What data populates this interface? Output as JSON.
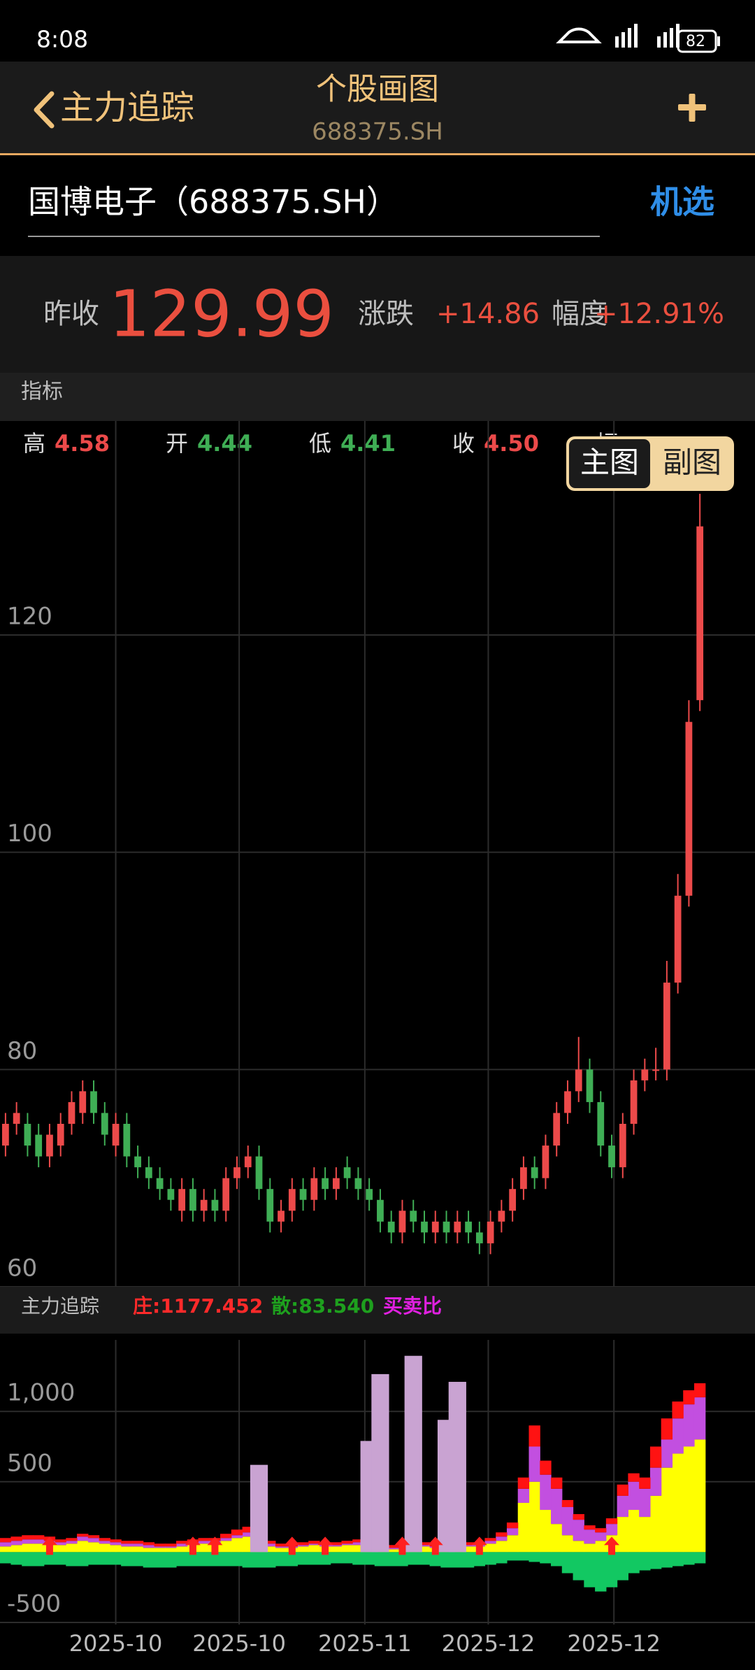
{
  "status": {
    "time": "8:08",
    "battery": "82"
  },
  "header": {
    "back": "主力追踪",
    "title": "个股画图",
    "subtitle": "688375.SH"
  },
  "search": {
    "text": "国博电子（688375.SH）",
    "button": "机选"
  },
  "quote": {
    "prev_label": "昨收",
    "price": "129.99",
    "change_label": "涨跌",
    "change": "+14.86",
    "pct_label": "幅度",
    "pct": "+12.91%"
  },
  "section": {
    "title": "指标"
  },
  "info": {
    "high_label": "高",
    "high": "4.58",
    "open_label": "开",
    "open": "4.44",
    "low_label": "低",
    "low": "4.41",
    "close_label": "收",
    "close": "4.50",
    "range_label": "幅"
  },
  "toggle": {
    "main": "主图",
    "sub": "副图"
  },
  "indicator_header": {
    "title": "主力追踪",
    "items": [
      {
        "text": "庄:1177.452",
        "color": "#ff2a2a"
      },
      {
        "text": "散:83.540",
        "color": "#1ea01e"
      },
      {
        "text": "买卖比",
        "color": "#e020e0"
      }
    ]
  },
  "chart_data": [
    {
      "type": "candlestick",
      "up_color": "#ec4a4a",
      "down_color": "#3fae55",
      "xlim": [
        -0.5,
        68
      ],
      "ylim": [
        60,
        139.7
      ],
      "yticks": [
        60,
        80,
        100,
        120
      ],
      "grid": true,
      "open": [
        73,
        75,
        75,
        74,
        72,
        73,
        75,
        76,
        78,
        76,
        73,
        75,
        72,
        71,
        70,
        69,
        67,
        69,
        67,
        68,
        67,
        70,
        71,
        72,
        69,
        66,
        67,
        69,
        68,
        70,
        69,
        71,
        70,
        69,
        68,
        66,
        65,
        67,
        66,
        65,
        66,
        65,
        66,
        65,
        64,
        66,
        67,
        69,
        71,
        70,
        73,
        76,
        78,
        80,
        77,
        73,
        71,
        75,
        79,
        80,
        80,
        88,
        96,
        114
      ],
      "high": [
        76,
        77,
        76,
        75,
        75,
        76,
        78,
        79,
        79,
        77,
        76,
        76,
        73,
        72,
        71,
        70,
        70,
        70,
        69,
        69,
        71,
        72,
        73,
        73,
        70,
        68,
        70,
        70,
        71,
        71,
        71,
        72,
        71,
        70,
        69,
        67,
        68,
        68,
        67,
        67,
        67,
        67,
        67,
        66,
        67,
        68,
        70,
        72,
        72,
        74,
        77,
        79,
        83,
        81,
        78,
        74,
        76,
        80,
        81,
        82,
        90,
        98,
        114,
        133
      ],
      "low": [
        72,
        74,
        72,
        71,
        71,
        72,
        74,
        75,
        75,
        73,
        72,
        71,
        70,
        69,
        68,
        67,
        66,
        66,
        66,
        66,
        66,
        69,
        70,
        68,
        65,
        65,
        66,
        67,
        67,
        68,
        68,
        69,
        68,
        67,
        65,
        64,
        64,
        65,
        64,
        64,
        64,
        64,
        64,
        63,
        63,
        65,
        66,
        68,
        69,
        69,
        72,
        75,
        77,
        76,
        72,
        70,
        70,
        74,
        78,
        79,
        79,
        87,
        95,
        113
      ],
      "close": [
        75,
        76,
        73,
        72,
        74,
        75,
        77,
        78,
        76,
        74,
        75,
        72,
        71,
        70,
        69,
        68,
        69,
        67,
        68,
        67,
        70,
        71,
        72,
        69,
        66,
        67,
        69,
        68,
        70,
        69,
        70,
        70,
        69,
        68,
        66,
        65,
        67,
        66,
        65,
        66,
        65,
        66,
        65,
        64,
        66,
        67,
        69,
        71,
        70,
        73,
        76,
        78,
        80,
        77,
        73,
        71,
        75,
        79,
        80,
        80,
        88,
        96,
        112,
        130
      ]
    },
    {
      "type": "bar",
      "xlim": [
        -0.5,
        68
      ],
      "ylim": [
        -515,
        1508
      ],
      "yticks": [
        {
          "value": 1000,
          "label": "1,000"
        },
        500,
        -500
      ],
      "xticks": [
        {
          "value": 10,
          "label": "2025-10"
        },
        {
          "value": 21.2,
          "label": "2025-10"
        },
        {
          "value": 32.6,
          "label": "2025-11"
        },
        {
          "value": 43.8,
          "label": "2025-12"
        },
        {
          "value": 55.2,
          "label": "2025-12"
        }
      ],
      "grid": true,
      "series": [
        {
          "color": "#ffff00",
          "stacked": true,
          "values": [
            40,
            50,
            60,
            60,
            50,
            50,
            60,
            80,
            70,
            60,
            50,
            40,
            40,
            30,
            30,
            30,
            40,
            50,
            60,
            60,
            80,
            100,
            110,
            60,
            40,
            30,
            30,
            40,
            50,
            40,
            40,
            50,
            50,
            40,
            30,
            20,
            20,
            30,
            40,
            30,
            30,
            30,
            40,
            40,
            60,
            80,
            120,
            350,
            500,
            300,
            200,
            120,
            80,
            60,
            80,
            120,
            250,
            300,
            250,
            400,
            600,
            700,
            750,
            800
          ]
        },
        {
          "color": "#c24fe0",
          "stacked": true,
          "values": [
            30,
            30,
            30,
            30,
            30,
            20,
            20,
            30,
            30,
            20,
            20,
            20,
            20,
            20,
            10,
            10,
            20,
            20,
            20,
            20,
            20,
            20,
            30,
            20,
            20,
            10,
            10,
            10,
            10,
            10,
            10,
            10,
            20,
            20,
            10,
            10,
            10,
            10,
            10,
            10,
            10,
            10,
            10,
            10,
            20,
            30,
            50,
            100,
            250,
            250,
            250,
            200,
            150,
            100,
            60,
            80,
            150,
            200,
            200,
            200,
            200,
            250,
            300,
            300
          ]
        },
        {
          "color": "#ff1212",
          "stacked": true,
          "values": [
            30,
            30,
            30,
            30,
            30,
            20,
            20,
            20,
            20,
            20,
            20,
            20,
            20,
            20,
            20,
            20,
            20,
            20,
            20,
            20,
            30,
            40,
            40,
            20,
            20,
            20,
            20,
            20,
            20,
            20,
            20,
            20,
            20,
            20,
            20,
            20,
            20,
            20,
            20,
            20,
            20,
            20,
            20,
            20,
            20,
            30,
            40,
            80,
            150,
            100,
            80,
            50,
            40,
            30,
            30,
            40,
            80,
            60,
            80,
            150,
            150,
            120,
            100,
            100
          ]
        },
        {
          "color": "#12c862",
          "stacked": false,
          "values": [
            -80,
            -90,
            -100,
            -100,
            -90,
            -90,
            -100,
            -100,
            -90,
            -90,
            -90,
            -100,
            -100,
            -110,
            -110,
            -110,
            -100,
            -100,
            -100,
            -100,
            -100,
            -100,
            -110,
            -110,
            -110,
            -100,
            -100,
            -90,
            -90,
            -90,
            -80,
            -80,
            -90,
            -90,
            -100,
            -100,
            -100,
            -90,
            -90,
            -100,
            -110,
            -110,
            -110,
            -100,
            -90,
            -80,
            -60,
            -60,
            -70,
            -80,
            -100,
            -150,
            -200,
            -250,
            -280,
            -250,
            -200,
            -150,
            -130,
            -120,
            -110,
            -100,
            -90,
            -80
          ]
        },
        {
          "color": "#c9a3d2",
          "stacked": false,
          "values": [
            null,
            null,
            null,
            null,
            null,
            null,
            null,
            null,
            null,
            null,
            null,
            null,
            null,
            null,
            null,
            null,
            null,
            null,
            null,
            null,
            null,
            null,
            null,
            620,
            null,
            null,
            null,
            null,
            null,
            null,
            null,
            null,
            null,
            790,
            1265,
            null,
            null,
            1395,
            null,
            null,
            940,
            1210,
            null,
            null,
            null,
            null,
            null,
            null,
            null,
            null,
            null,
            null,
            null,
            null,
            null,
            null,
            null,
            null,
            null,
            null,
            null,
            null,
            null,
            null
          ]
        }
      ],
      "signal_color": "#ff2020",
      "signals": [
        null,
        null,
        null,
        null,
        0,
        null,
        null,
        null,
        null,
        null,
        null,
        null,
        null,
        null,
        null,
        null,
        null,
        0,
        null,
        0,
        null,
        null,
        null,
        null,
        null,
        null,
        0,
        null,
        null,
        0,
        null,
        null,
        null,
        null,
        null,
        null,
        0,
        null,
        null,
        0,
        null,
        null,
        null,
        0,
        null,
        null,
        null,
        null,
        null,
        null,
        null,
        null,
        null,
        null,
        null,
        0,
        null,
        null,
        null,
        null,
        null,
        null,
        null,
        null
      ]
    }
  ]
}
